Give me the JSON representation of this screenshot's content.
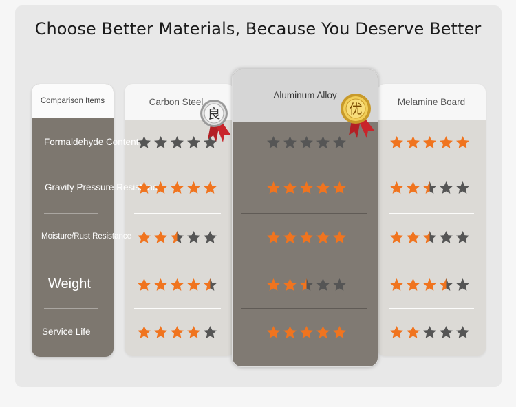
{
  "title": "Choose Better Materials, Because You Deserve Better",
  "columns": {
    "items": "Comparison Items",
    "carbon": "Carbon Steel",
    "aluminum": "Aluminum Alloy",
    "melamine": "Melamine Board"
  },
  "badges": {
    "carbon": "良",
    "aluminum": "优"
  },
  "rows": [
    {
      "label": "Formaldehyde Content",
      "carbon": 5,
      "aluminum": 5,
      "melamine": 5,
      "star_colors": {
        "carbon": "gray",
        "aluminum": "gray",
        "melamine": "orange"
      }
    },
    {
      "label": "Gravity Pressure Resistance",
      "carbon": 5,
      "aluminum": 5,
      "melamine": 2.5
    },
    {
      "label": "Moisture/Rust Resistance",
      "carbon": 2.5,
      "aluminum": 5,
      "melamine": 2.5
    },
    {
      "label": "Weight",
      "carbon": 4.5,
      "aluminum": 2.5,
      "melamine": 3.5
    },
    {
      "label": "Service Life",
      "carbon": 4,
      "aluminum": 5,
      "melamine": 2
    }
  ],
  "colors": {
    "star_orange": "#f0741f",
    "star_gray": "#555555",
    "item_column": "#7d776f",
    "aluminum_column": "#807a73"
  }
}
